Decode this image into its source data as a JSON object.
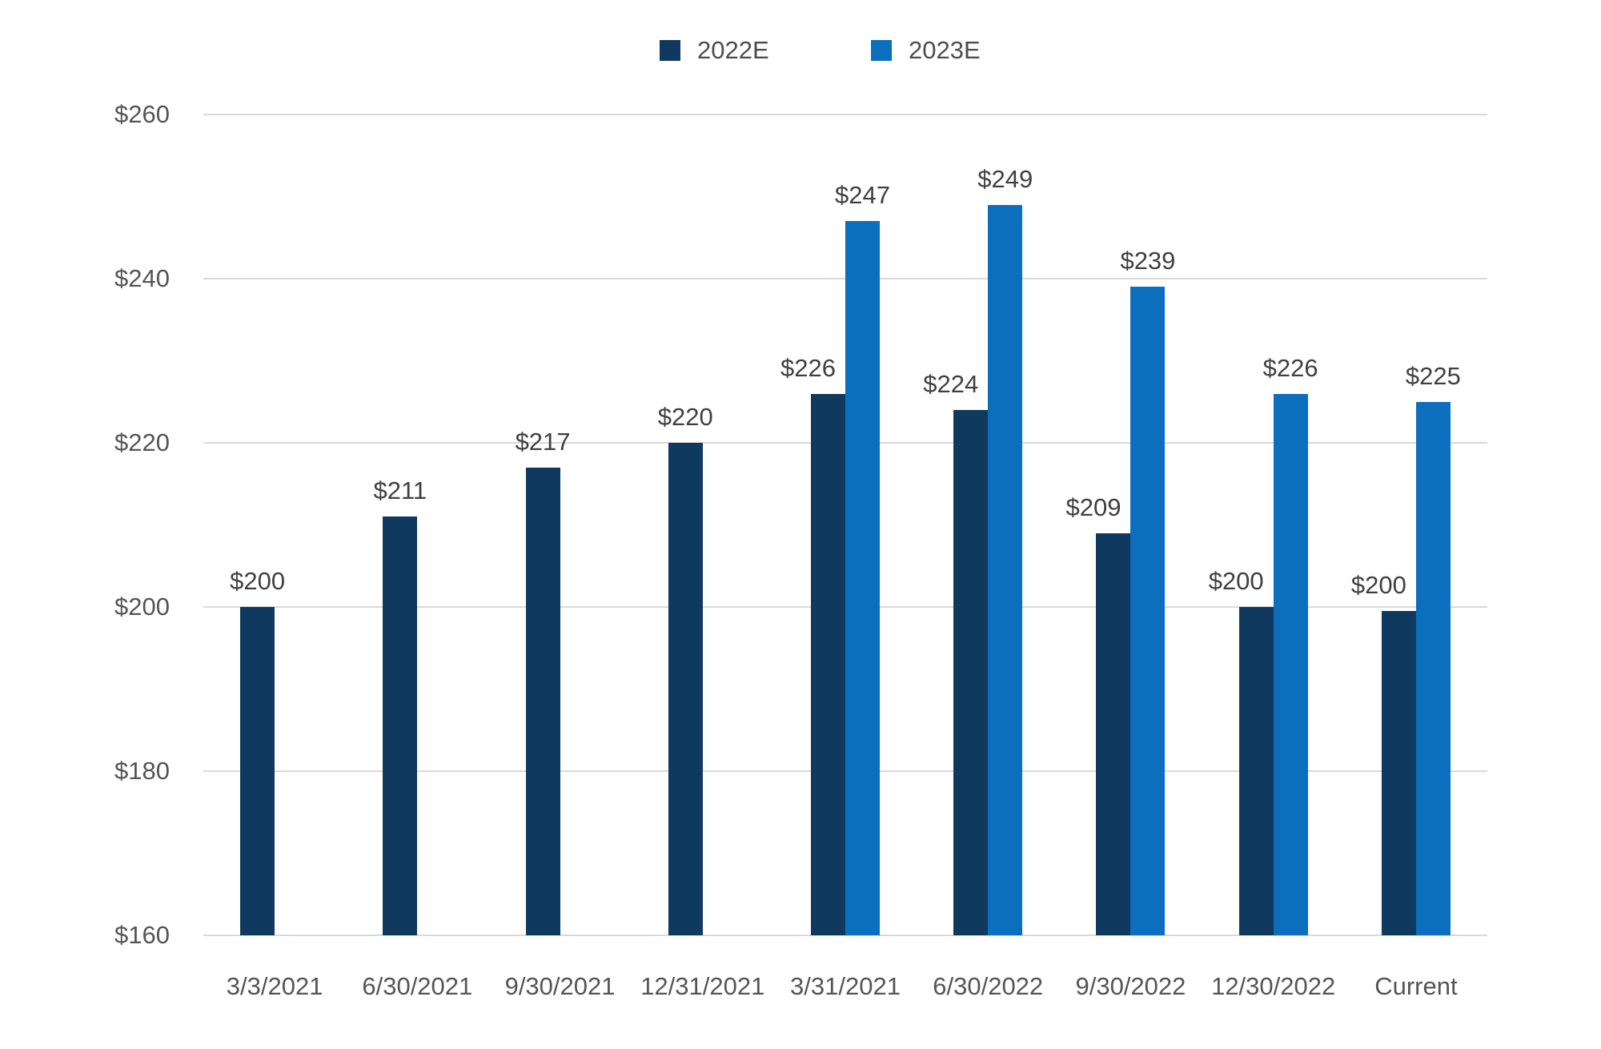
{
  "chart_data": {
    "type": "bar",
    "title": "",
    "xlabel": "",
    "ylabel": "",
    "categories": [
      "3/3/2021",
      "6/30/2021",
      "9/30/2021",
      "12/31/2021",
      "3/31/2021",
      "6/30/2022",
      "9/30/2022",
      "12/30/2022",
      "Current"
    ],
    "series": [
      {
        "name": "2022E",
        "color": "#10395f",
        "values": [
          200,
          211,
          217,
          220,
          226,
          224,
          209,
          200,
          199.5
        ],
        "labels": [
          "$200",
          "$211",
          "$217",
          "$220",
          "$226",
          "$224",
          "$209",
          "$200",
          "$200"
        ]
      },
      {
        "name": "2023E",
        "color": "#0b6fbe",
        "values": [
          null,
          null,
          null,
          null,
          247,
          249,
          239,
          226,
          225
        ],
        "labels": [
          null,
          null,
          null,
          null,
          "$247",
          "$249",
          "$239",
          "$226",
          "$225"
        ]
      }
    ],
    "ylim": [
      160,
      260
    ],
    "yticks": [
      160,
      180,
      200,
      220,
      240,
      260
    ],
    "ytick_labels": [
      "$160",
      "$180",
      "$200",
      "$220",
      "$240",
      "$260"
    ],
    "grid": true,
    "legend_position": "top",
    "colors": {
      "gridline": "#d9d9d9",
      "value_label_text": "#404040",
      "axis_text": "#555555",
      "background": "#ffffff"
    }
  }
}
